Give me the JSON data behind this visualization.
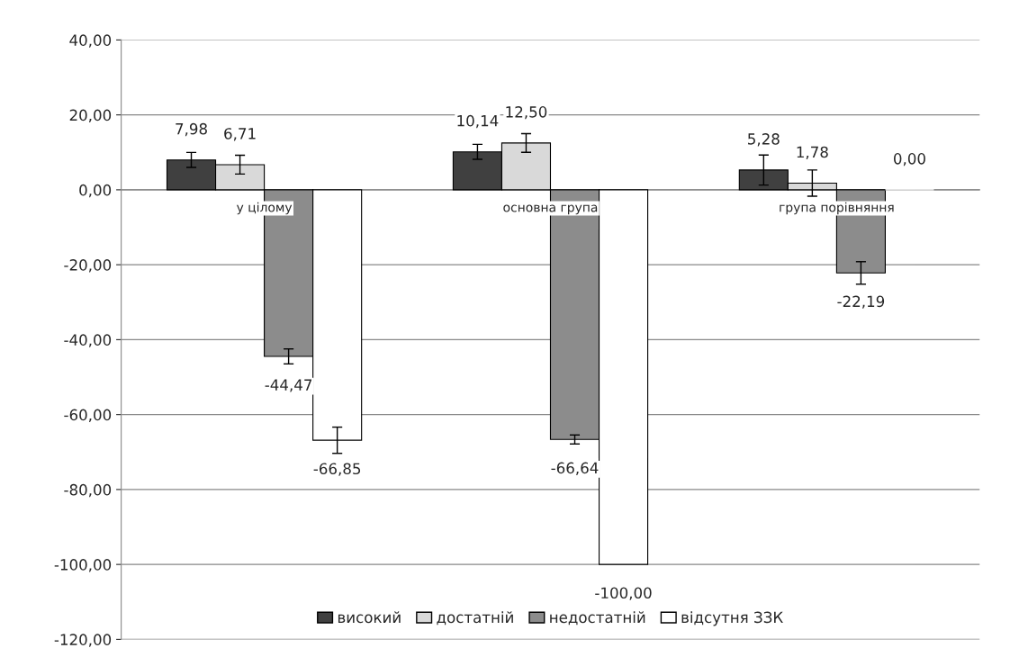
{
  "chart_data": {
    "type": "bar",
    "categories": [
      "у цілому",
      "основна група",
      "група порівняння"
    ],
    "series": [
      {
        "name": "високий",
        "color": "#404040",
        "values": [
          7.98,
          10.14,
          5.28
        ],
        "errors": [
          2.0,
          2.0,
          4.0
        ],
        "value_labels": [
          "7,98",
          "10,14",
          "5,28"
        ]
      },
      {
        "name": "достатній",
        "color": "#d9d9d9",
        "values": [
          6.71,
          12.5,
          1.78
        ],
        "errors": [
          2.5,
          2.5,
          3.5
        ],
        "value_labels": [
          "6,71",
          "12,50",
          "1,78"
        ]
      },
      {
        "name": "недостатній",
        "color": "#8c8c8c",
        "values": [
          -44.47,
          -66.64,
          -22.19
        ],
        "errors": [
          2.0,
          1.2,
          3.0
        ],
        "value_labels": [
          "-44,47",
          "-66,64",
          "-22,19"
        ]
      },
      {
        "name": "відсутня ЗЗК",
        "color": "#ffffff",
        "values": [
          -66.85,
          -100.0,
          0.0
        ],
        "errors": [
          3.5,
          null,
          null
        ],
        "value_labels": [
          "-66,85",
          "-100,00",
          "0,00"
        ]
      }
    ],
    "ylim": [
      -120,
      40
    ],
    "yticks": [
      {
        "value": -120,
        "label": "-120,00"
      },
      {
        "value": -100,
        "label": "-100,00"
      },
      {
        "value": -80,
        "label": "-80,00"
      },
      {
        "value": -60,
        "label": "-60,00"
      },
      {
        "value": -40,
        "label": "-40,00"
      },
      {
        "value": -20,
        "label": "-20,00"
      },
      {
        "value": 0,
        "label": "0,00"
      },
      {
        "value": 20,
        "label": "20,00"
      },
      {
        "value": 40,
        "label": "40,00"
      }
    ],
    "grid": "y",
    "legend": "bottom"
  }
}
